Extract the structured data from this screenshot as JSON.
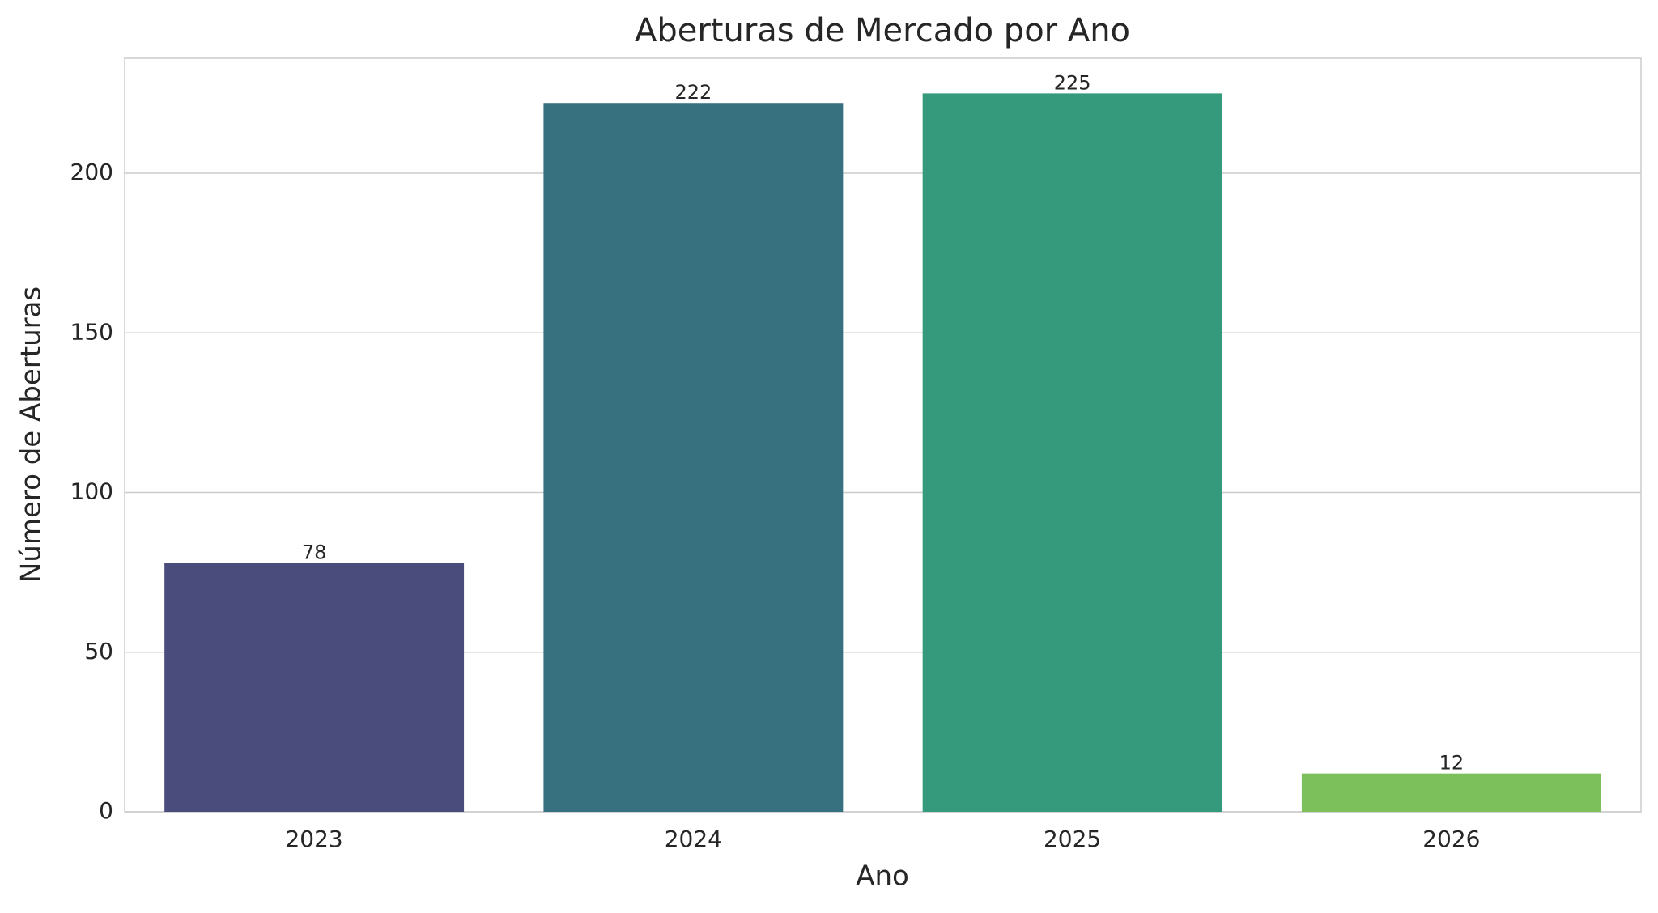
{
  "chart_data": {
    "type": "bar",
    "title": "Aberturas de Mercado por Ano",
    "x_label": "Ano",
    "y_label": "Número de Aberturas",
    "categories": [
      "2023",
      "2024",
      "2025",
      "2026"
    ],
    "values": [
      78,
      222,
      225,
      12
    ],
    "colors": [
      "#4a4c7c",
      "#37717f",
      "#359a7b",
      "#7bc05a"
    ],
    "ylim": [
      0,
      236
    ],
    "yticks": [
      0,
      50,
      100,
      150,
      200
    ],
    "grid": true
  }
}
